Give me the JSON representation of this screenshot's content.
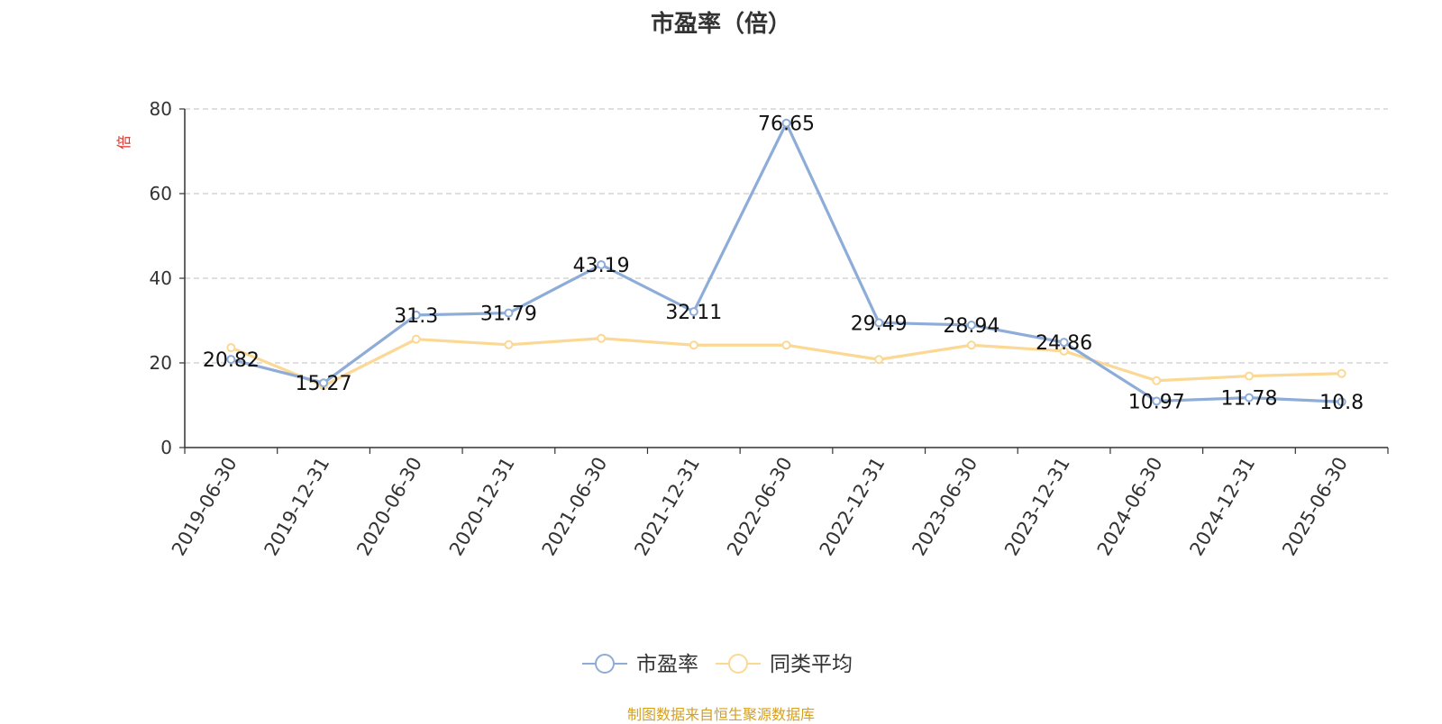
{
  "chart_data": {
    "type": "line",
    "title": "市盈率（倍）",
    "ylabel": "倍",
    "ylim": [
      0,
      80
    ],
    "yticks": [
      0,
      20,
      40,
      60,
      80
    ],
    "grid": true,
    "legend_position": "bottom-center",
    "categories": [
      "2019-06-30",
      "2019-12-31",
      "2020-06-30",
      "2020-12-31",
      "2021-06-30",
      "2021-12-31",
      "2022-06-30",
      "2022-12-31",
      "2023-06-30",
      "2023-12-31",
      "2024-06-30",
      "2024-12-31",
      "2025-06-30"
    ],
    "series": [
      {
        "name": "市盈率",
        "color": "#8eacd8",
        "values": [
          20.82,
          15.27,
          31.3,
          31.79,
          43.19,
          32.11,
          76.65,
          29.49,
          28.94,
          24.86,
          10.97,
          11.78,
          10.8
        ],
        "labels": [
          "20.82",
          "15.27",
          "31.3",
          "31.79",
          "43.19",
          "32.11",
          "76.65",
          "29.49",
          "28.94",
          "24.86",
          "10.97",
          "11.78",
          "10.8"
        ]
      },
      {
        "name": "同类平均",
        "color": "#fbd894",
        "values": [
          23.6,
          14.6,
          25.6,
          24.3,
          25.8,
          24.2,
          24.2,
          20.8,
          24.2,
          22.8,
          15.8,
          16.9,
          17.5
        ]
      }
    ]
  },
  "source": "制图数据来自恒生聚源数据库",
  "colors": {
    "axis": "#333333",
    "grid": "#cccccc",
    "ylabel": "#e0302a",
    "source": "#d4a020"
  }
}
